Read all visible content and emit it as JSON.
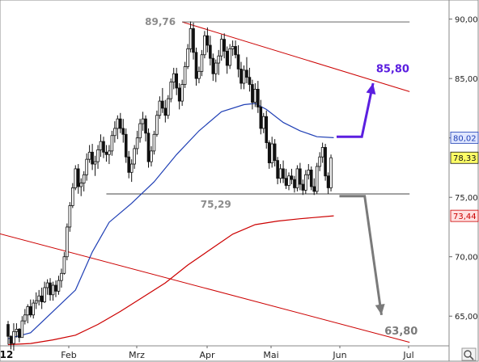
{
  "chart_data": {
    "type": "candlestick",
    "x_axis": {
      "year_label": "'12",
      "month_labels": [
        "Feb",
        "Mrz",
        "Apr",
        "Mai",
        "Jun",
        "Jul"
      ]
    },
    "y_axis": {
      "ticks": [
        65,
        70,
        75,
        80,
        85,
        90
      ],
      "tick_labels": [
        "65,00",
        "70,00",
        "75,00",
        "80,00",
        "85,00",
        "90,00"
      ],
      "ylim": [
        62.5,
        91.2
      ],
      "position": "right"
    },
    "price_tags": [
      {
        "label": "80,02",
        "value": 80.02,
        "color": "#1f3fb5",
        "fill": "#dfe6ff"
      },
      {
        "label": "78,33",
        "value": 78.33,
        "color": "#111111",
        "fill": "#ffff66"
      },
      {
        "label": "73,44",
        "value": 73.44,
        "color": "#cc0000",
        "fill": "#ffe0e0"
      }
    ],
    "annotations": {
      "high": {
        "label": "89,76",
        "value": 89.76
      },
      "support": {
        "label": "75,29",
        "value": 75.29
      },
      "target_up": {
        "label": "85,80",
        "value": 85.8,
        "color": "#5b1fe0"
      },
      "target_down": {
        "label": "63,80",
        "value": 63.8,
        "color": "#7a7a7a"
      }
    },
    "series": [
      {
        "name": "",
        "kind": "ohlc",
        "values": [
          [
            64.3,
            64.6,
            62.6,
            63.3
          ],
          [
            63.3,
            63.4,
            62.2,
            62.7
          ],
          [
            62.7,
            64.4,
            62.1,
            63.7
          ],
          [
            63.7,
            64.4,
            63.2,
            63.9
          ],
          [
            63.9,
            64.0,
            62.8,
            63.2
          ],
          [
            63.2,
            65.0,
            63.2,
            64.6
          ],
          [
            64.6,
            65.6,
            64.3,
            65.1
          ],
          [
            65.1,
            66.0,
            64.4,
            65.8
          ],
          [
            65.8,
            66.4,
            64.9,
            65.1
          ],
          [
            65.1,
            66.4,
            64.8,
            66.1
          ],
          [
            66.1,
            67.0,
            65.6,
            66.3
          ],
          [
            66.3,
            67.2,
            65.9,
            66.7
          ],
          [
            66.7,
            67.4,
            65.6,
            66.2
          ],
          [
            66.2,
            67.9,
            66.1,
            67.4
          ],
          [
            67.4,
            68.1,
            66.8,
            67.8
          ],
          [
            67.8,
            68.2,
            66.3,
            66.8
          ],
          [
            66.8,
            67.9,
            66.3,
            67.6
          ],
          [
            67.6,
            68.0,
            66.6,
            67.1
          ],
          [
            67.1,
            68.4,
            66.8,
            68.0
          ],
          [
            68.0,
            69.0,
            67.4,
            68.6
          ],
          [
            68.6,
            70.4,
            68.5,
            70.0
          ],
          [
            70.0,
            72.8,
            69.7,
            72.5
          ],
          [
            72.5,
            74.6,
            72.1,
            74.3
          ],
          [
            74.3,
            76.2,
            74.1,
            75.8
          ],
          [
            75.8,
            77.7,
            75.6,
            77.4
          ],
          [
            77.4,
            77.8,
            75.3,
            75.9
          ],
          [
            75.9,
            76.6,
            75.1,
            76.2
          ],
          [
            76.2,
            77.2,
            75.5,
            76.9
          ],
          [
            76.9,
            78.7,
            76.4,
            78.2
          ],
          [
            78.2,
            79.4,
            77.9,
            78.8
          ],
          [
            78.8,
            79.5,
            77.3,
            77.8
          ],
          [
            77.8,
            78.5,
            76.8,
            78.0
          ],
          [
            78.0,
            79.4,
            77.4,
            79.0
          ],
          [
            79.0,
            80.3,
            78.4,
            79.7
          ],
          [
            79.7,
            80.1,
            78.3,
            78.8
          ],
          [
            78.8,
            79.4,
            78.0,
            78.6
          ],
          [
            78.6,
            79.4,
            77.8,
            78.9
          ],
          [
            78.9,
            80.6,
            78.5,
            80.2
          ],
          [
            80.2,
            81.4,
            79.6,
            80.8
          ],
          [
            80.8,
            81.9,
            79.9,
            81.6
          ],
          [
            81.6,
            82.1,
            80.4,
            80.8
          ],
          [
            80.8,
            81.6,
            79.6,
            80.3
          ],
          [
            80.3,
            80.8,
            77.9,
            78.4
          ],
          [
            78.4,
            78.9,
            76.6,
            77.1
          ],
          [
            77.1,
            78.2,
            76.3,
            77.8
          ],
          [
            77.8,
            79.4,
            77.4,
            79.1
          ],
          [
            79.1,
            80.6,
            78.6,
            80.0
          ],
          [
            80.0,
            81.6,
            79.6,
            81.2
          ],
          [
            81.2,
            82.2,
            80.6,
            81.6
          ],
          [
            81.6,
            81.9,
            79.7,
            80.4
          ],
          [
            80.4,
            80.8,
            77.5,
            78.0
          ],
          [
            78.0,
            79.3,
            77.6,
            78.9
          ],
          [
            78.9,
            80.6,
            78.6,
            80.3
          ],
          [
            80.3,
            82.3,
            80.1,
            81.9
          ],
          [
            81.9,
            83.5,
            81.6,
            83.1
          ],
          [
            83.1,
            84.2,
            82.1,
            82.5
          ],
          [
            82.5,
            83.2,
            81.3,
            81.9
          ],
          [
            81.9,
            83.6,
            81.6,
            83.3
          ],
          [
            83.3,
            85.0,
            83.0,
            84.7
          ],
          [
            84.7,
            85.9,
            84.1,
            85.4
          ],
          [
            85.4,
            85.9,
            83.6,
            84.2
          ],
          [
            84.2,
            84.6,
            82.4,
            83.1
          ],
          [
            83.1,
            84.9,
            82.7,
            84.5
          ],
          [
            84.5,
            86.4,
            84.2,
            86.0
          ],
          [
            86.0,
            87.9,
            85.8,
            87.5
          ],
          [
            87.5,
            89.8,
            87.2,
            89.2
          ],
          [
            89.2,
            89.7,
            86.6,
            87.2
          ],
          [
            87.2,
            87.6,
            84.4,
            85.0
          ],
          [
            85.0,
            86.0,
            84.6,
            85.6
          ],
          [
            85.6,
            87.4,
            85.2,
            87.0
          ],
          [
            87.0,
            89.0,
            86.7,
            88.6
          ],
          [
            88.6,
            89.3,
            87.2,
            87.8
          ],
          [
            87.8,
            88.6,
            86.1,
            86.7
          ],
          [
            86.7,
            87.1,
            84.8,
            85.4
          ],
          [
            85.4,
            86.6,
            84.7,
            86.3
          ],
          [
            86.3,
            87.4,
            85.3,
            86.9
          ],
          [
            86.9,
            88.7,
            86.5,
            88.3
          ],
          [
            88.3,
            88.8,
            86.7,
            87.3
          ],
          [
            87.3,
            87.7,
            85.4,
            86.1
          ],
          [
            86.1,
            87.9,
            85.8,
            87.5
          ],
          [
            87.5,
            88.2,
            86.9,
            87.7
          ],
          [
            87.7,
            88.2,
            86.7,
            87.0
          ],
          [
            87.0,
            87.8,
            85.1,
            85.8
          ],
          [
            85.8,
            86.4,
            84.1,
            84.6
          ],
          [
            84.6,
            86.1,
            84.1,
            85.7
          ],
          [
            85.7,
            86.8,
            84.6,
            85.1
          ],
          [
            85.1,
            85.9,
            83.9,
            84.5
          ],
          [
            84.5,
            84.9,
            82.4,
            83.0
          ],
          [
            83.0,
            84.6,
            82.6,
            84.1
          ],
          [
            84.1,
            84.8,
            82.1,
            82.6
          ],
          [
            82.6,
            83.2,
            80.3,
            80.8
          ],
          [
            80.8,
            82.1,
            80.4,
            81.8
          ],
          [
            81.8,
            82.3,
            79.1,
            79.6
          ],
          [
            79.6,
            79.8,
            77.4,
            77.9
          ],
          [
            77.9,
            80.1,
            77.5,
            79.5
          ],
          [
            79.5,
            79.9,
            77.6,
            78.1
          ],
          [
            78.1,
            78.4,
            76.1,
            76.6
          ],
          [
            76.6,
            77.8,
            76.2,
            77.4
          ],
          [
            77.4,
            78.1,
            76.2,
            76.6
          ],
          [
            76.6,
            77.4,
            75.7,
            76.0
          ],
          [
            76.0,
            77.1,
            75.6,
            76.8
          ],
          [
            76.8,
            77.4,
            76.1,
            76.5
          ],
          [
            76.5,
            76.8,
            75.4,
            75.8
          ],
          [
            75.8,
            77.7,
            75.5,
            77.4
          ],
          [
            77.4,
            77.9,
            75.6,
            76.1
          ],
          [
            76.1,
            76.5,
            75.2,
            75.6
          ],
          [
            75.6,
            77.3,
            75.3,
            76.9
          ],
          [
            76.9,
            77.8,
            76.5,
            77.3
          ],
          [
            77.3,
            77.6,
            75.6,
            75.9
          ],
          [
            75.9,
            76.6,
            75.2,
            75.5
          ],
          [
            75.5,
            77.9,
            75.3,
            77.6
          ],
          [
            77.6,
            78.8,
            77.2,
            78.4
          ],
          [
            78.4,
            79.6,
            77.9,
            79.2
          ],
          [
            79.2,
            79.5,
            76.4,
            76.8
          ],
          [
            76.8,
            77.1,
            75.3,
            75.8
          ],
          [
            75.8,
            78.6,
            75.5,
            78.33
          ]
        ]
      },
      {
        "name": "",
        "kind": "moving_average_short",
        "color": "#1f3fb5",
        "values": [
          [
            0,
            63.1
          ],
          [
            8,
            63.6
          ],
          [
            16,
            65.4
          ],
          [
            24,
            67.2
          ],
          [
            30,
            70.4
          ],
          [
            36,
            72.9
          ],
          [
            44,
            74.5
          ],
          [
            52,
            76.3
          ],
          [
            60,
            78.6
          ],
          [
            68,
            80.6
          ],
          [
            76,
            82.2
          ],
          [
            84,
            82.8
          ],
          [
            88,
            82.9
          ],
          [
            92,
            82.4
          ],
          [
            98,
            81.3
          ],
          [
            104,
            80.6
          ],
          [
            110,
            80.1
          ],
          [
            116,
            80.02
          ]
        ]
      },
      {
        "name": "",
        "kind": "moving_average_long",
        "color": "#cc0000",
        "values": [
          [
            0,
            62.6
          ],
          [
            8,
            62.7
          ],
          [
            16,
            63.0
          ],
          [
            24,
            63.4
          ],
          [
            32,
            64.3
          ],
          [
            40,
            65.4
          ],
          [
            48,
            66.6
          ],
          [
            56,
            67.8
          ],
          [
            64,
            69.3
          ],
          [
            72,
            70.6
          ],
          [
            80,
            71.9
          ],
          [
            88,
            72.7
          ],
          [
            96,
            73.0
          ],
          [
            104,
            73.2
          ],
          [
            116,
            73.44
          ]
        ]
      }
    ],
    "trend_lines": [
      {
        "kind": "resistance_upper",
        "color": "#cc0000",
        "points": [
          [
            62,
            89.76
          ],
          [
            143,
            83.9
          ]
        ]
      },
      {
        "kind": "support_lower",
        "color": "#cc0000",
        "points": [
          [
            -4,
            72.0
          ],
          [
            143,
            62.8
          ]
        ]
      },
      {
        "kind": "horizontal_high",
        "color": "#666666",
        "points": [
          [
            62,
            89.76
          ],
          [
            143,
            89.76
          ]
        ]
      },
      {
        "kind": "horizontal_support",
        "color": "#444444",
        "points": [
          [
            35,
            75.29
          ],
          [
            143,
            75.29
          ]
        ]
      }
    ],
    "projections": [
      {
        "kind": "up",
        "color": "#5b1fe0",
        "points": [
          [
            117,
            80.1
          ],
          [
            126,
            80.1
          ],
          [
            130,
            84.6
          ]
        ]
      },
      {
        "kind": "down",
        "color": "#7a7a7a",
        "points": [
          [
            118,
            75.1
          ],
          [
            127,
            75.1
          ],
          [
            133,
            65.1
          ]
        ]
      }
    ],
    "grid": false
  }
}
